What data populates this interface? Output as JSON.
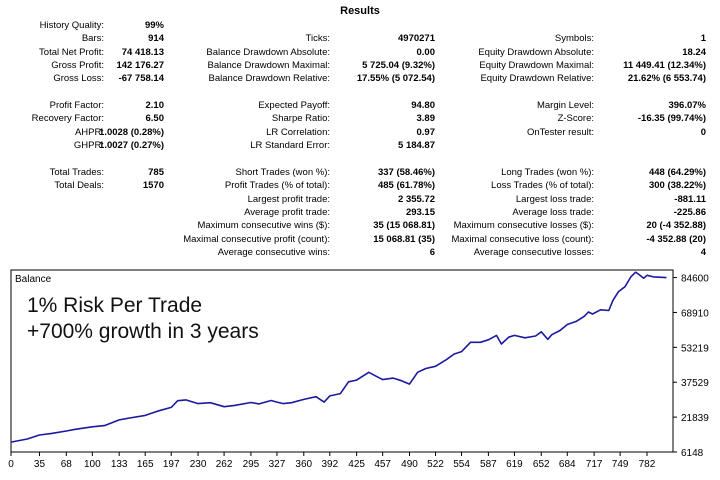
{
  "report": {
    "title": "Results",
    "columns": [
      [
        {
          "label": "History Quality:",
          "value": "99%"
        },
        {
          "label": "Bars:",
          "value": "914"
        },
        {
          "label": "Total Net Profit:",
          "value": "74 418.13"
        },
        {
          "label": "Gross Profit:",
          "value": "142 176.27"
        },
        {
          "label": "Gross Loss:",
          "value": "-67 758.14"
        },
        {
          "label": "",
          "value": ""
        },
        {
          "label": "Profit Factor:",
          "value": "2.10"
        },
        {
          "label": "Recovery Factor:",
          "value": "6.50"
        },
        {
          "label": "AHPR:",
          "value": "1.0028 (0.28%)"
        },
        {
          "label": "GHPR:",
          "value": "1.0027 (0.27%)"
        },
        {
          "label": "",
          "value": ""
        },
        {
          "label": "Total Trades:",
          "value": "785"
        },
        {
          "label": "Total Deals:",
          "value": "1570"
        }
      ],
      [
        {
          "label": "",
          "value": ""
        },
        {
          "label": "Ticks:",
          "value": "4970271"
        },
        {
          "label": "Balance Drawdown Absolute:",
          "value": "0.00"
        },
        {
          "label": "Balance Drawdown Maximal:",
          "value": "5 725.04 (9.32%)"
        },
        {
          "label": "Balance Drawdown Relative:",
          "value": "17.55% (5 072.54)"
        },
        {
          "label": "",
          "value": ""
        },
        {
          "label": "Expected Payoff:",
          "value": "94.80"
        },
        {
          "label": "Sharpe Ratio:",
          "value": "3.89"
        },
        {
          "label": "LR Correlation:",
          "value": "0.97"
        },
        {
          "label": "LR Standard Error:",
          "value": "5 184.87"
        },
        {
          "label": "",
          "value": ""
        },
        {
          "label": "Short Trades (won %):",
          "value": "337 (58.46%)"
        },
        {
          "label": "Profit Trades (% of total):",
          "value": "485 (61.78%)"
        },
        {
          "label": "Largest profit trade:",
          "value": "2 355.72"
        },
        {
          "label": "Average profit trade:",
          "value": "293.15"
        },
        {
          "label": "Maximum consecutive wins ($):",
          "value": "35 (15 068.81)"
        },
        {
          "label": "Maximal consecutive profit (count):",
          "value": "15 068.81 (35)"
        },
        {
          "label": "Average consecutive wins:",
          "value": "6"
        }
      ],
      [
        {
          "label": "",
          "value": ""
        },
        {
          "label": "Symbols:",
          "value": "1"
        },
        {
          "label": "Equity Drawdown Absolute:",
          "value": "18.24"
        },
        {
          "label": "Equity Drawdown Maximal:",
          "value": "11 449.41 (12.34%)"
        },
        {
          "label": "Equity Drawdown Relative:",
          "value": "21.62% (6 553.74)"
        },
        {
          "label": "",
          "value": ""
        },
        {
          "label": "Margin Level:",
          "value": "396.07%"
        },
        {
          "label": "Z-Score:",
          "value": "-16.35 (99.74%)"
        },
        {
          "label": "OnTester result:",
          "value": "0"
        },
        {
          "label": "",
          "value": ""
        },
        {
          "label": "",
          "value": ""
        },
        {
          "label": "Long Trades (won %):",
          "value": "448 (64.29%)"
        },
        {
          "label": "Loss Trades (% of total):",
          "value": "300 (38.22%)"
        },
        {
          "label": "Largest loss trade:",
          "value": "-881.11"
        },
        {
          "label": "Average loss trade:",
          "value": "-225.86"
        },
        {
          "label": "Maximum consecutive losses ($):",
          "value": "20 (-4 352.88)"
        },
        {
          "label": "Maximal consecutive loss (count):",
          "value": "-4 352.88 (20)"
        },
        {
          "label": "Average consecutive losses:",
          "value": "4"
        }
      ]
    ]
  },
  "chart_data": {
    "type": "line",
    "title": "Balance",
    "annotations": [
      "1% Risk Per Trade",
      "+700% growth in 3 years"
    ],
    "xlabel": "",
    "ylabel": "",
    "x_ticks": [
      "0",
      "35",
      "68",
      "100",
      "133",
      "165",
      "197",
      "230",
      "262",
      "295",
      "327",
      "360",
      "392",
      "425",
      "457",
      "490",
      "522",
      "554",
      "587",
      "619",
      "652",
      "684",
      "717",
      "749",
      "782"
    ],
    "y_ticks": [
      "84600",
      "68910",
      "53219",
      "37529",
      "21839",
      "6148"
    ],
    "xlim": [
      0,
      814
    ],
    "ylim": [
      6148,
      88000
    ],
    "line_color": "#1a1aa0",
    "grid": false,
    "series": [
      {
        "values": [
          [
            0,
            10600
          ],
          [
            20,
            12000
          ],
          [
            35,
            13800
          ],
          [
            50,
            14500
          ],
          [
            68,
            15600
          ],
          [
            80,
            16400
          ],
          [
            100,
            17500
          ],
          [
            115,
            18000
          ],
          [
            133,
            20600
          ],
          [
            145,
            21400
          ],
          [
            165,
            22600
          ],
          [
            180,
            24500
          ],
          [
            197,
            26200
          ],
          [
            205,
            29200
          ],
          [
            215,
            29600
          ],
          [
            230,
            27900
          ],
          [
            245,
            28300
          ],
          [
            262,
            26500
          ],
          [
            275,
            27100
          ],
          [
            295,
            28400
          ],
          [
            305,
            27800
          ],
          [
            320,
            29300
          ],
          [
            327,
            28600
          ],
          [
            335,
            27900
          ],
          [
            345,
            28300
          ],
          [
            360,
            29800
          ],
          [
            375,
            31000
          ],
          [
            385,
            28600
          ],
          [
            392,
            31400
          ],
          [
            405,
            32400
          ],
          [
            415,
            37700
          ],
          [
            425,
            38500
          ],
          [
            440,
            42000
          ],
          [
            450,
            40000
          ],
          [
            457,
            38700
          ],
          [
            470,
            39400
          ],
          [
            480,
            38200
          ],
          [
            490,
            36700
          ],
          [
            500,
            42000
          ],
          [
            510,
            43700
          ],
          [
            522,
            44700
          ],
          [
            535,
            47600
          ],
          [
            545,
            50200
          ],
          [
            554,
            51300
          ],
          [
            565,
            55500
          ],
          [
            577,
            55500
          ],
          [
            587,
            56600
          ],
          [
            597,
            58600
          ],
          [
            603,
            54700
          ],
          [
            612,
            57800
          ],
          [
            619,
            58600
          ],
          [
            632,
            57500
          ],
          [
            645,
            58300
          ],
          [
            652,
            60200
          ],
          [
            660,
            56800
          ],
          [
            665,
            58900
          ],
          [
            675,
            60800
          ],
          [
            684,
            63500
          ],
          [
            695,
            64900
          ],
          [
            705,
            67200
          ],
          [
            710,
            69100
          ],
          [
            715,
            68200
          ],
          [
            725,
            70100
          ],
          [
            735,
            69800
          ],
          [
            740,
            74200
          ],
          [
            747,
            78300
          ],
          [
            755,
            80500
          ],
          [
            762,
            84800
          ],
          [
            768,
            87000
          ],
          [
            772,
            86000
          ],
          [
            778,
            84300
          ],
          [
            782,
            85600
          ],
          [
            790,
            84900
          ],
          [
            800,
            84700
          ],
          [
            806,
            84600
          ]
        ]
      }
    ]
  }
}
